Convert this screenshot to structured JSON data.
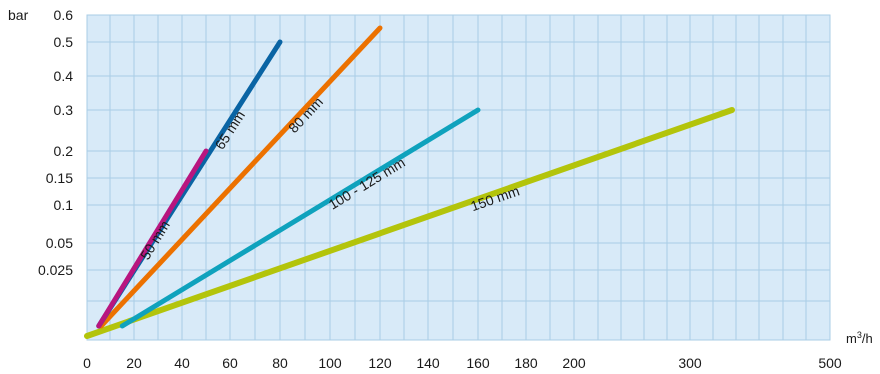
{
  "chart_data": {
    "type": "line",
    "title": "",
    "ylabel": "bar",
    "xlabel": "m³/h",
    "grid": true,
    "background_color": "#d8eaf8",
    "grid_color": "#a9cce6",
    "y_ticks": [
      {
        "label": "0.6",
        "pos": 0.6
      },
      {
        "label": "0.5",
        "pos": 0.5
      },
      {
        "label": "0.4",
        "pos": 0.4
      },
      {
        "label": "0.3",
        "pos": 0.3
      },
      {
        "label": "0.2",
        "pos": 0.2
      },
      {
        "label": "0.15",
        "pos": 0.15
      },
      {
        "label": "0.1",
        "pos": 0.1
      },
      {
        "label": "0.05",
        "pos": 0.05
      },
      {
        "label": "0.025",
        "pos": 0.025
      }
    ],
    "x_ticks": [
      {
        "label": "0",
        "pos": 0
      },
      {
        "label": "20",
        "pos": 20
      },
      {
        "label": "40",
        "pos": 40
      },
      {
        "label": "60",
        "pos": 60
      },
      {
        "label": "80",
        "pos": 80
      },
      {
        "label": "100",
        "pos": 100
      },
      {
        "label": "120",
        "pos": 120
      },
      {
        "label": "140",
        "pos": 140
      },
      {
        "label": "160",
        "pos": 160
      },
      {
        "label": "180",
        "pos": 180
      },
      {
        "label": "200",
        "pos": 200
      },
      {
        "label": "300",
        "pos": 300
      },
      {
        "label": "500",
        "pos": 500
      }
    ],
    "series": [
      {
        "name": "50 mm",
        "color": "#b8157f",
        "points": [
          [
            5,
            -0.09
          ],
          [
            50,
            0.2
          ]
        ]
      },
      {
        "name": "65 mm",
        "color": "#0a64a4",
        "points": [
          [
            5,
            -0.09
          ],
          [
            80,
            0.5
          ]
        ]
      },
      {
        "name": "80 mm",
        "color": "#ec7100",
        "points": [
          [
            6,
            -0.09
          ],
          [
            120,
            0.525
          ]
        ]
      },
      {
        "name": "100 - 125 mm",
        "color": "#0fa2bd",
        "points": [
          [
            15,
            -0.09
          ],
          [
            160,
            0.3
          ]
        ]
      },
      {
        "name": "150 mm",
        "color": "#b3c40b",
        "points": [
          [
            -10,
            -0.13
          ],
          [
            360,
            0.3
          ]
        ]
      }
    ]
  }
}
